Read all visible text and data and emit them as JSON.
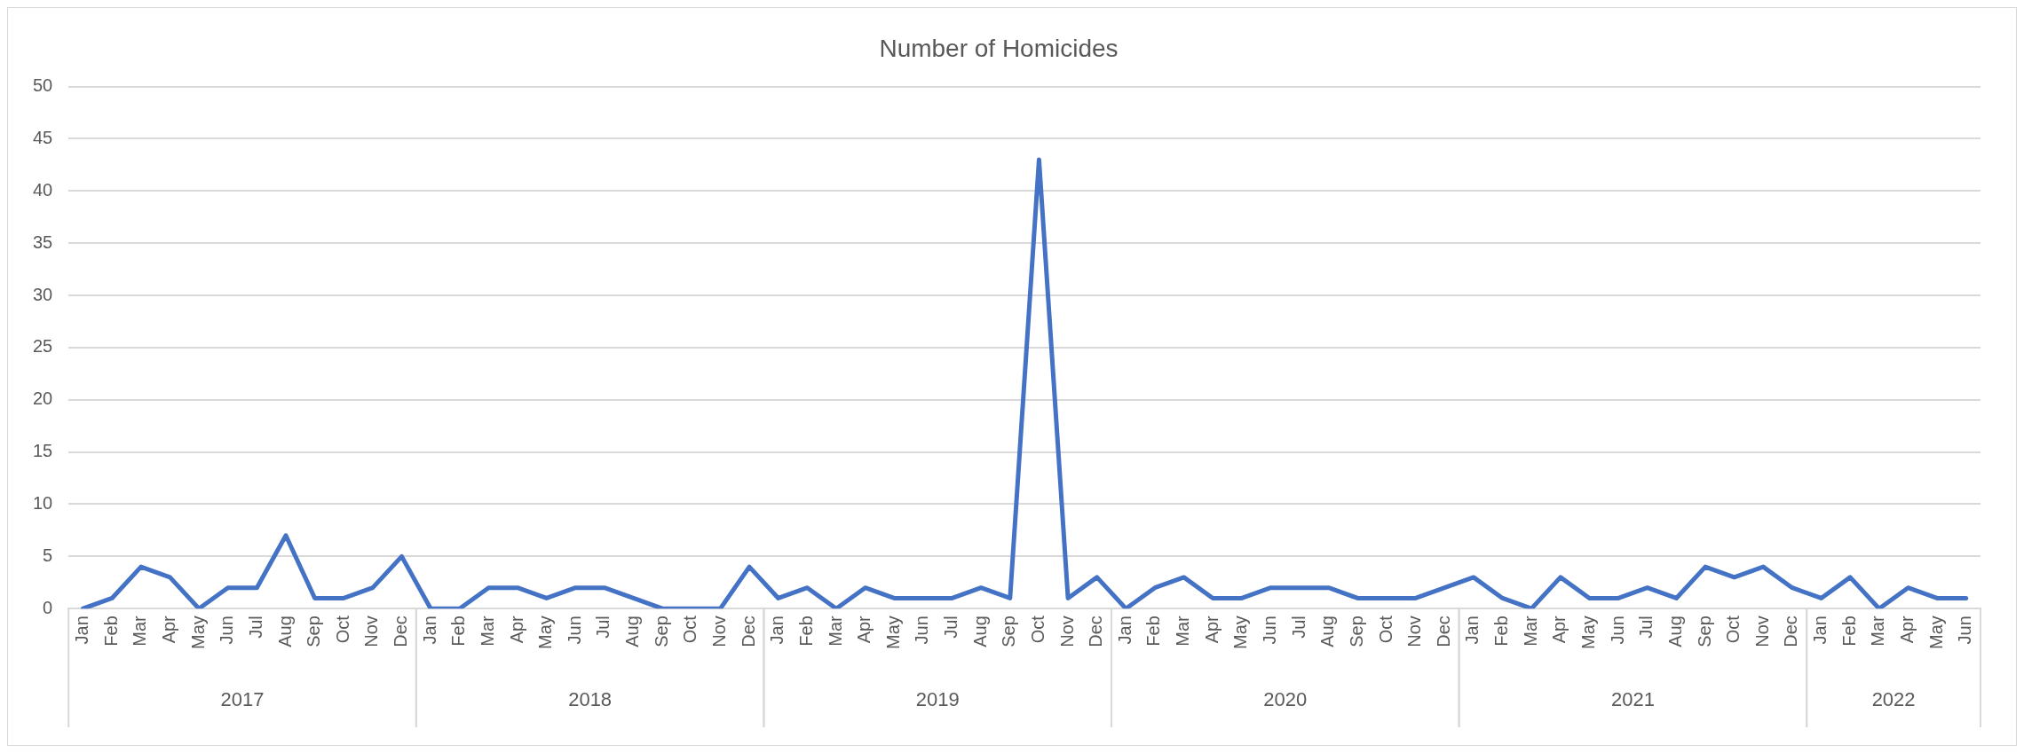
{
  "chart_data": {
    "type": "line",
    "title": "Number of Homicides",
    "categories": [
      "Jan",
      "Feb",
      "Mar",
      "Apr",
      "May",
      "Jun",
      "Jul",
      "Aug",
      "Sep",
      "Oct",
      "Nov",
      "Dec",
      "Jan",
      "Feb",
      "Mar",
      "Apr",
      "May",
      "Jun",
      "Jul",
      "Aug",
      "Sep",
      "Oct",
      "Nov",
      "Dec",
      "Jan",
      "Feb",
      "Mar",
      "Apr",
      "May",
      "Jun",
      "Jul",
      "Aug",
      "Sep",
      "Oct",
      "Nov",
      "Dec",
      "Jan",
      "Feb",
      "Mar",
      "Apr",
      "May",
      "Jun",
      "Jul",
      "Aug",
      "Sep",
      "Oct",
      "Nov",
      "Dec",
      "Jan",
      "Feb",
      "Mar",
      "Apr",
      "May",
      "Jun",
      "Jul",
      "Aug",
      "Sep",
      "Oct",
      "Nov",
      "Dec",
      "Jan",
      "Feb",
      "Mar",
      "Apr",
      "May",
      "Jun"
    ],
    "series": [
      {
        "color": "#4472c4",
        "values": [
          0,
          1,
          4,
          3,
          0,
          2,
          2,
          7,
          1,
          1,
          2,
          5,
          0,
          0,
          2,
          2,
          1,
          2,
          2,
          1,
          0,
          0,
          0,
          4,
          1,
          2,
          0,
          2,
          1,
          1,
          1,
          2,
          1,
          43,
          1,
          3,
          0,
          2,
          3,
          1,
          1,
          2,
          2,
          2,
          1,
          1,
          1,
          2,
          3,
          1,
          0,
          3,
          1,
          1,
          2,
          1,
          4,
          3,
          4,
          2,
          1,
          3,
          0,
          2,
          1,
          1
        ]
      }
    ],
    "annotations": [
      "2017",
      "2018",
      "2019",
      "2020",
      "2021",
      "2022"
    ],
    "ylim": [
      0,
      50
    ],
    "yticks": [
      0,
      5,
      10,
      15,
      20,
      25,
      30,
      35,
      40,
      45,
      50
    ],
    "grid": "y",
    "legend": false,
    "marker": "none",
    "line_style": "solid"
  }
}
